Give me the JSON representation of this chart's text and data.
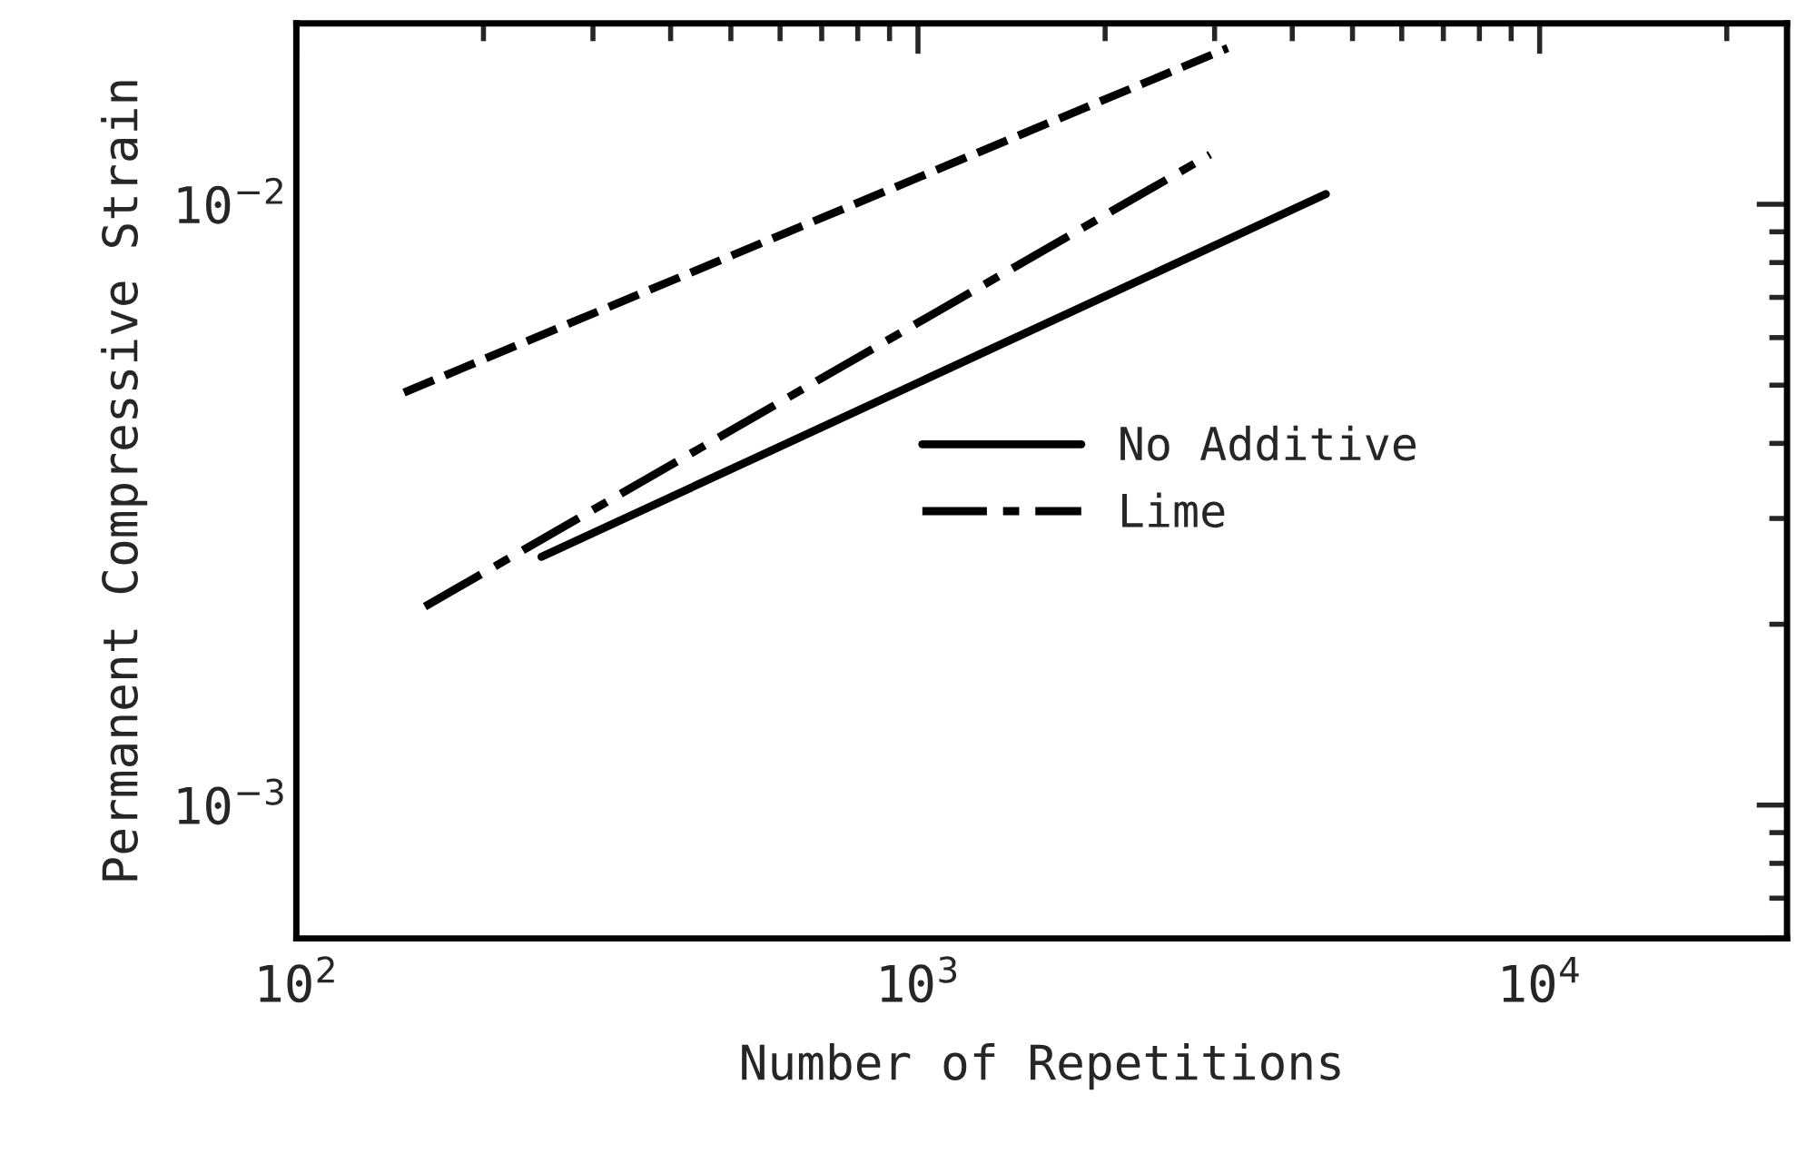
{
  "chart_data": {
    "type": "line",
    "xlabel": "Number of Repetitions",
    "ylabel": "Permanent Compressive Strain",
    "log": "xy",
    "xlim": [
      100,
      25000
    ],
    "xticks": [
      {
        "value": 100,
        "label": "10$^{2}$"
      },
      {
        "value": 1000,
        "label": "10$^{3}$"
      },
      {
        "value": 10000,
        "label": "10$^{4}$"
      }
    ],
    "ylim": [
      0.0006,
      0.02
    ],
    "yticks": [
      {
        "value": 0.001,
        "label": "10$^{−3}$"
      },
      {
        "value": 0.01,
        "label": "10$^{−2}$"
      }
    ],
    "grid": false,
    "legend": "center right",
    "marker": "none",
    "series": [
      {
        "name": "No Additive",
        "color": "#000000",
        "line_style": "solid",
        "x": [
          248,
          4530
        ],
        "values": [
          0.00259,
          0.0104
        ]
      },
      {
        "name": "Lime",
        "color": "#000000",
        "line_style": "dashdot",
        "x": [
          161,
          2950
        ],
        "values": [
          0.00214,
          0.0121
        ]
      },
      {
        "color": "#000000",
        "line_style": "dashed",
        "x": [
          149,
          3150
        ],
        "values": [
          0.00486,
          0.0182
        ]
      }
    ]
  }
}
